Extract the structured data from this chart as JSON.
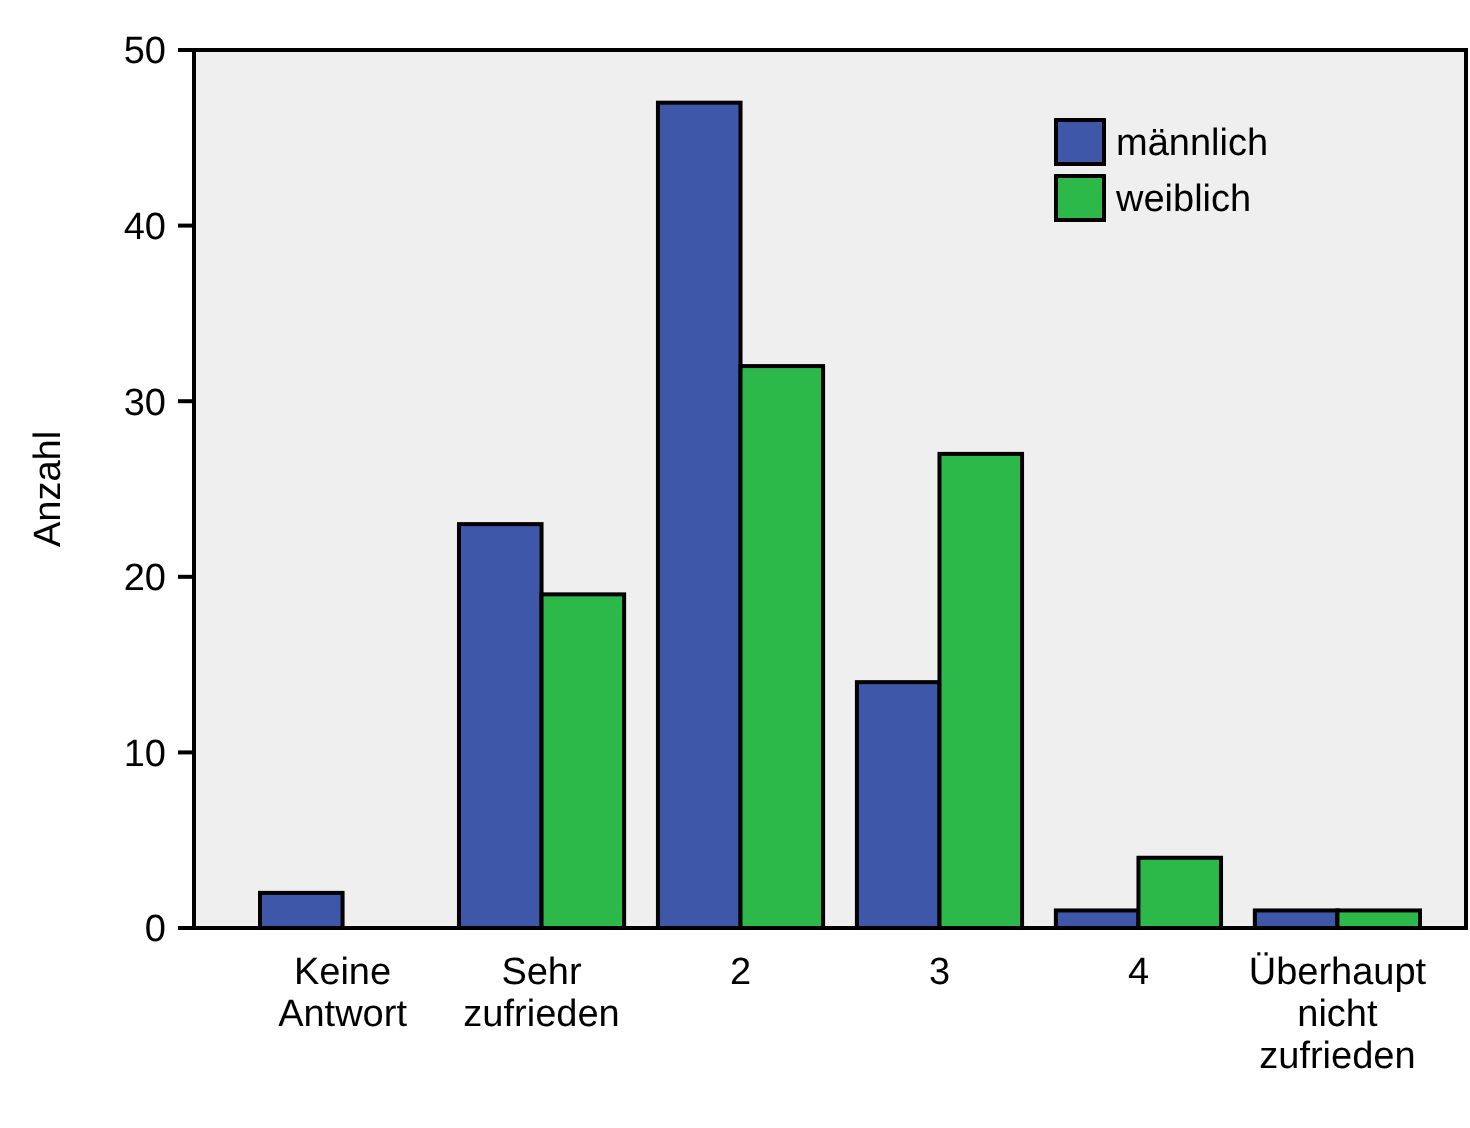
{
  "chart_data": {
    "type": "bar",
    "ylabel": "Anzahl",
    "categories": [
      "Keine Antwort",
      "Sehr zufrieden",
      "2",
      "3",
      "4",
      "Überhaupt nicht zufrieden"
    ],
    "series": [
      {
        "name": "männlich",
        "color": "#3f57a8",
        "values": [
          2,
          23,
          47,
          14,
          1,
          1
        ]
      },
      {
        "name": "weiblich",
        "color": "#2db84a",
        "values": [
          0,
          19,
          32,
          27,
          4,
          1
        ]
      }
    ],
    "ylim": [
      0,
      50
    ],
    "yticks": [
      0,
      10,
      20,
      30,
      40,
      50
    ],
    "grid": false,
    "legend": "top right"
  }
}
